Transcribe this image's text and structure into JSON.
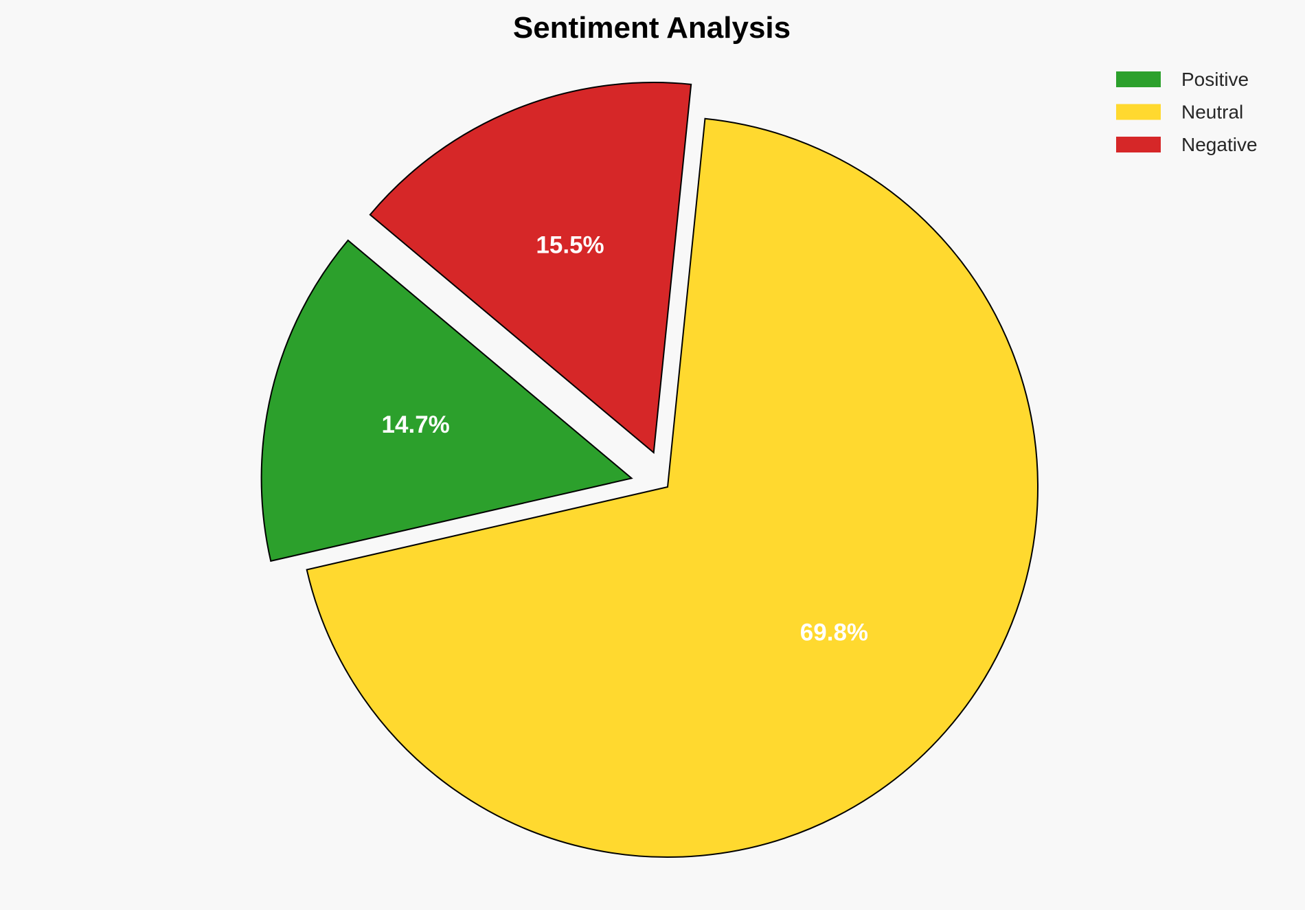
{
  "chart_data": {
    "type": "pie",
    "title": "Sentiment Analysis",
    "categories": [
      "Positive",
      "Neutral",
      "Negative"
    ],
    "values": [
      14.7,
      69.8,
      15.5
    ],
    "labels": [
      "14.7%",
      "69.8%",
      "15.5%"
    ],
    "colors": [
      "#2ca02c",
      "#ffd92f",
      "#d62728"
    ],
    "explode": [
      0.1,
      0,
      0.1
    ],
    "start_angle": 140,
    "direction": "counterclockwise",
    "edge_color": "#000000",
    "legend_placement": "top-right"
  }
}
